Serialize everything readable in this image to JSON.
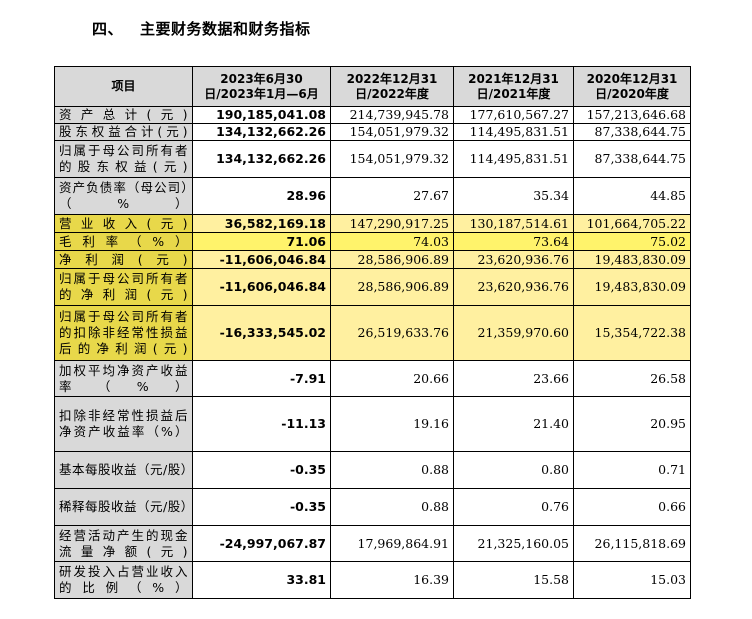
{
  "section": {
    "number": "四、",
    "title": "主要财务数据和财务指标"
  },
  "table": {
    "headers": [
      "项目",
      "2023年6月30日/2023年1月—6月",
      "2022年12月31日/2022年度",
      "2021年12月31日/2021年度",
      "2020年12月31日/2020年度"
    ],
    "rows": [
      {
        "label": "资产总计(元)",
        "values": [
          "190,185,041.08",
          "214,739,945.78",
          "177,610,567.27",
          "157,213,646.68"
        ]
      },
      {
        "label": "股东权益合计(元)",
        "values": [
          "134,132,662.26",
          "154,051,979.32",
          "114,495,831.51",
          "87,338,644.75"
        ]
      },
      {
        "label": "归属于母公司所有者的股东权益(元)",
        "values": [
          "134,132,662.26",
          "154,051,979.32",
          "114,495,831.51",
          "87,338,644.75"
        ]
      },
      {
        "label": "资产负债率（母公司）（%）",
        "values": [
          "28.96",
          "27.67",
          "35.34",
          "44.85"
        ]
      },
      {
        "label": "营业收入(元)",
        "values": [
          "36,582,169.18",
          "147,290,917.25",
          "130,187,514.61",
          "101,664,705.22"
        ]
      },
      {
        "label": "毛利率（%）",
        "values": [
          "71.06",
          "74.03",
          "73.64",
          "75.02"
        ]
      },
      {
        "label": "净利润(元)",
        "values": [
          "-11,606,046.84",
          "28,586,906.89",
          "23,620,936.76",
          "19,483,830.09"
        ]
      },
      {
        "label": "归属于母公司所有者的净利润(元)",
        "values": [
          "-11,606,046.84",
          "28,586,906.89",
          "23,620,936.76",
          "19,483,830.09"
        ]
      },
      {
        "label": "归属于母公司所有者的扣除非经常性损益后的净利润(元)",
        "values": [
          "-16,333,545.02",
          "26,519,633.76",
          "21,359,970.60",
          "15,354,722.38"
        ]
      },
      {
        "label": "加权平均净资产收益率（%）",
        "values": [
          "-7.91",
          "20.66",
          "23.66",
          "26.58"
        ]
      },
      {
        "label": "扣除非经常性损益后净资产收益率（%）",
        "values": [
          "-11.13",
          "19.16",
          "21.40",
          "20.95"
        ]
      },
      {
        "label": "基本每股收益（元/股）",
        "values": [
          "-0.35",
          "0.88",
          "0.80",
          "0.71"
        ]
      },
      {
        "label": "稀释每股收益（元/股）",
        "values": [
          "-0.35",
          "0.88",
          "0.76",
          "0.66"
        ]
      },
      {
        "label": "经营活动产生的现金流量净额(元)",
        "values": [
          "-24,997,067.87",
          "17,969,864.91",
          "21,325,160.05",
          "26,115,818.69"
        ]
      },
      {
        "label": "研发投入占营业收入的比例（%）",
        "values": [
          "33.81",
          "16.39",
          "15.58",
          "15.03"
        ]
      }
    ]
  },
  "colors": {
    "label_bg": "#d9d9d9",
    "highlight_label": "#e8d84a",
    "highlight_value": "#fff36b"
  }
}
